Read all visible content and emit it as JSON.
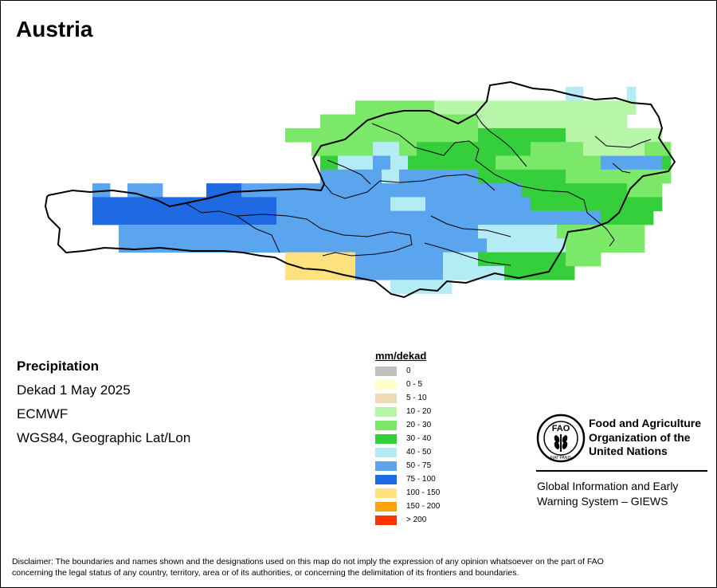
{
  "title": "Austria",
  "info": {
    "variable": "Precipitation",
    "period": "Dekad 1 May 2025",
    "source": "ECMWF",
    "projection": "WGS84, Geographic Lat/Lon"
  },
  "legend": {
    "title": "mm/dekad",
    "classes": [
      {
        "label": "0",
        "color": "#c0c0c0"
      },
      {
        "label": "0 - 5",
        "color": "#ffffcc"
      },
      {
        "label": "5 - 10",
        "color": "#f0d9b5"
      },
      {
        "label": "10 - 20",
        "color": "#b7f5a8"
      },
      {
        "label": "20 - 30",
        "color": "#7ce86a"
      },
      {
        "label": "30 - 40",
        "color": "#34cf3b"
      },
      {
        "label": "40 - 50",
        "color": "#b3ecf5"
      },
      {
        "label": "50 - 75",
        "color": "#5aa5ee"
      },
      {
        "label": "75 - 100",
        "color": "#1f6ae3"
      },
      {
        "label": "100 - 150",
        "color": "#ffe27e"
      },
      {
        "label": "150 - 200",
        "color": "#ffa20a"
      },
      {
        "label": "> 200",
        "color": "#ff3300"
      }
    ]
  },
  "logo": {
    "org_line1": "Food and Agriculture",
    "org_line2": "Organization of the",
    "org_line3": "United Nations",
    "emblem_text": "FAO",
    "motto": "FIAT PANIS",
    "system_line1": "Global Information and Early",
    "system_line2": "Warning System – GIEWS"
  },
  "disclaimer_line1": "Disclaimer: The boundaries and names shown and the designations used on this map do not imply the expression of any opinion whatsoever on the part of FAO",
  "disclaimer_line2": "concerning the legal status of any country, territory, area or of its authorities, or concerning the delimitation of its frontiers and boundaries.",
  "map_grid": {
    "classes": [
      "10 - 20",
      "20 - 30",
      "30 - 40",
      "40 - 50",
      "50 - 75",
      "75 - 100",
      "100 - 150",
      "5 - 10"
    ],
    "rows": [
      "...........................................................DD.....D....",
      "...................................BBBBBBBBBAAAAAAAAAAAAAAAAAAAAAAA.....",
      "...............................BBBBBBBBBBBBBBBBBBAAAAAAAAAAAAAAAAA.....",
      "...........................BBBBBBBBBBBBBBBBBBBBBBCCCCCCCCCCAAAAAAAAAAA.",
      "..............................BBBBBBBDDDBBCCCCCCCCCCCCCBBBBBBAAAAAAABBB.",
      "...............................CCDDDDEEDDCCCCCCCCCCBBBBBBBBBBBBEEEEEEEC",
      "...............................EEEEEEEDDEEEEEEEEECCCCCCCCCCBBBBBBBBBBBB.",
      ".....EE..EEEE.....FFFFEEEEEEEEEEEEEEEEEEEEEEEEEEEEEEEECCCCCCCCCCCCBBBB.",
      ".....FFFFFFFFFFFFFFFFFFFFFEEEEEEEEEEEEEDDDDEEEEEEEEEEEECCCCCCCCCCCCCCC..",
      ".....FFFFFFFFFFFFFFFFFFFFFEEEEEEEEEEEEEEEEEEEEEEEEEEEEEEEEEEEEECCCCCC...",
      "........EEEEEEEEEEEEEEEEEEEEEEEEEEEEEEEEEEEEEEEEEDDDDDDDDDBBBBBBBBBB....",
      "........EEEEEEEEEEEEEEEEEEEEEEEEEEEEEEEEEEEEEEEEEEDDDDDDDDDBBBBBBBBB....",
      "...........................GGGGGGGGEEEEEEEEEEDDDDCCCCCCCCCCBBBB........",
      "...........................GGGGGGGGEEEEEEEEEEDDDDDDDCCCCCCCC...........",
      ".......................................DDDDDDD.........................."
    ]
  }
}
